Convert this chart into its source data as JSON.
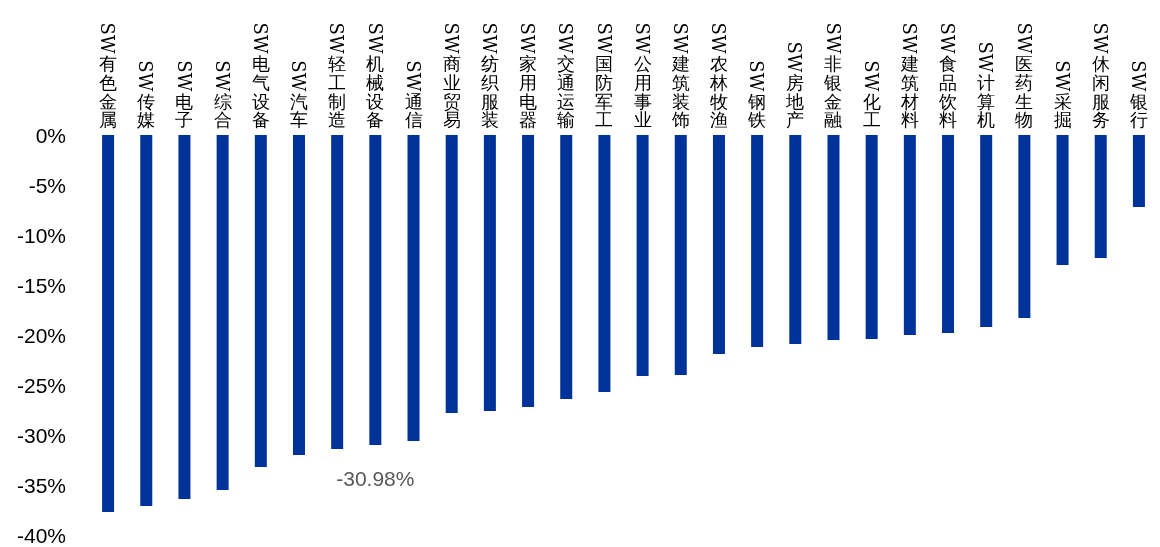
{
  "chart_data": {
    "type": "bar",
    "categories": [
      "SW有色金属",
      "SW传媒",
      "SW电子",
      "SW综合",
      "SW电气设备",
      "SW汽车",
      "SW轻工制造",
      "SW机械设备",
      "SW通信",
      "SW商业贸易",
      "SW纺织服装",
      "SW家用电器",
      "SW交通运输",
      "SW国防军工",
      "SW公用事业",
      "SW建筑装饰",
      "SW农林牧渔",
      "SW钢铁",
      "SW房地产",
      "SW非银金融",
      "SW化工",
      "SW建筑材料",
      "SW食品饮料",
      "SW计算机",
      "SW医药生物",
      "SW采掘",
      "SW休闲服务",
      "SW银行"
    ],
    "values": [
      -37.7,
      -37.1,
      -36.4,
      -35.5,
      -33.2,
      -32.0,
      -31.4,
      -31.0,
      -30.6,
      -27.8,
      -27.6,
      -27.2,
      -26.4,
      -25.7,
      -24.1,
      -24.0,
      -21.9,
      -21.2,
      -20.9,
      -20.5,
      -20.4,
      -20.0,
      -19.8,
      -19.2,
      -18.3,
      -13.0,
      -12.3,
      -7.2
    ],
    "color": "#003399",
    "ylim": [
      -40,
      0
    ],
    "yticks": [
      {
        "value": 0,
        "label": "0%"
      },
      {
        "value": -5,
        "label": "-5%"
      },
      {
        "value": -10,
        "label": "-10%"
      },
      {
        "value": -15,
        "label": "-15%"
      },
      {
        "value": -20,
        "label": "-20%"
      },
      {
        "value": -25,
        "label": "-25%"
      },
      {
        "value": -30,
        "label": "-30%"
      },
      {
        "value": -35,
        "label": "-35%"
      },
      {
        "value": -40,
        "label": "-40%"
      }
    ],
    "annotations": [
      {
        "text": "-30.98%",
        "x": "SW机械设备",
        "y": -30.98
      }
    ]
  }
}
